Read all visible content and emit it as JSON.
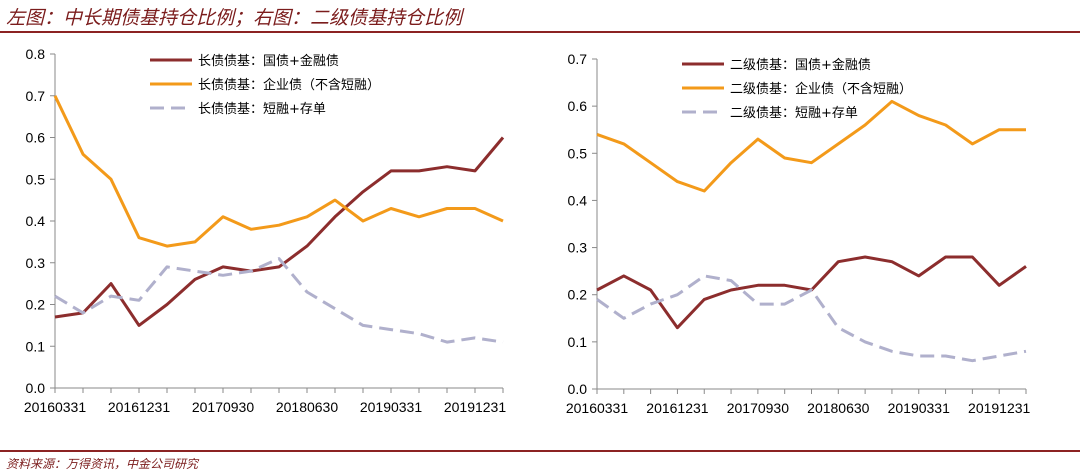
{
  "header": {
    "title": "左图：中长期债基持仓比例；右图：二级债基持仓比例"
  },
  "footer": {
    "source": "资料来源：万得资讯，中金公司研究"
  },
  "colors": {
    "rule": "#8c2323",
    "series1": "#8c2d2d",
    "series2": "#f39a1a",
    "series3": "#b0b0cc"
  },
  "chart_data": [
    {
      "type": "line",
      "title": "中长期债基持仓比例",
      "x": [
        "20160331",
        "20160630",
        "20160930",
        "20161231",
        "20170331",
        "20170630",
        "20170930",
        "20171231",
        "20180331",
        "20180630",
        "20180930",
        "20181231",
        "20190331",
        "20190630",
        "20190930",
        "20191231",
        "20200331"
      ],
      "xticks": [
        "20160331",
        "20161231",
        "20170930",
        "20180630",
        "20190331",
        "20191231"
      ],
      "ylim": [
        0,
        0.8
      ],
      "yticks": [
        "0.0",
        "0.1",
        "0.2",
        "0.3",
        "0.4",
        "0.5",
        "0.6",
        "0.7",
        "0.8"
      ],
      "legend_position": "top-center",
      "series": [
        {
          "name": "长债债基：国债+金融债",
          "style": "solid",
          "color": "#8c2d2d",
          "values": [
            0.17,
            0.18,
            0.25,
            0.15,
            0.2,
            0.26,
            0.29,
            0.28,
            0.29,
            0.34,
            0.41,
            0.47,
            0.52,
            0.52,
            0.53,
            0.52,
            0.6
          ]
        },
        {
          "name": "长债债基：企业债（不含短融）",
          "style": "solid",
          "color": "#f39a1a",
          "values": [
            0.7,
            0.56,
            0.5,
            0.36,
            0.34,
            0.35,
            0.41,
            0.38,
            0.39,
            0.41,
            0.45,
            0.4,
            0.43,
            0.41,
            0.43,
            0.43,
            0.4
          ]
        },
        {
          "name": "长债债基：短融+存单",
          "style": "dashed",
          "color": "#b0b0cc",
          "values": [
            0.22,
            0.18,
            0.22,
            0.21,
            0.29,
            0.28,
            0.27,
            0.28,
            0.31,
            0.23,
            0.19,
            0.15,
            0.14,
            0.13,
            0.11,
            0.12,
            0.11
          ]
        }
      ]
    },
    {
      "type": "line",
      "title": "二级债基持仓比例",
      "x": [
        "20160331",
        "20160630",
        "20160930",
        "20161231",
        "20170331",
        "20170630",
        "20170930",
        "20171231",
        "20180331",
        "20180630",
        "20180930",
        "20181231",
        "20190331",
        "20190630",
        "20190930",
        "20191231",
        "20200331"
      ],
      "xticks": [
        "20160331",
        "20161231",
        "20170930",
        "20180630",
        "20190331",
        "20191231"
      ],
      "ylim": [
        0,
        0.7
      ],
      "yticks": [
        "0.0",
        "0.1",
        "0.2",
        "0.3",
        "0.4",
        "0.5",
        "0.6",
        "0.7"
      ],
      "legend_position": "top-center",
      "series": [
        {
          "name": "二级债基：国债+金融债",
          "style": "solid",
          "color": "#8c2d2d",
          "values": [
            0.21,
            0.24,
            0.21,
            0.13,
            0.19,
            0.21,
            0.22,
            0.22,
            0.21,
            0.27,
            0.28,
            0.27,
            0.24,
            0.28,
            0.28,
            0.22,
            0.26
          ]
        },
        {
          "name": "二级债基：企业债（不含短融）",
          "style": "solid",
          "color": "#f39a1a",
          "values": [
            0.54,
            0.52,
            0.48,
            0.44,
            0.42,
            0.48,
            0.53,
            0.49,
            0.48,
            0.52,
            0.56,
            0.61,
            0.58,
            0.56,
            0.52,
            0.55,
            0.55
          ]
        },
        {
          "name": "二级债基：短融+存单",
          "style": "dashed",
          "color": "#b0b0cc",
          "values": [
            0.19,
            0.15,
            0.18,
            0.2,
            0.24,
            0.23,
            0.18,
            0.18,
            0.21,
            0.13,
            0.1,
            0.08,
            0.07,
            0.07,
            0.06,
            0.07,
            0.08
          ]
        }
      ]
    }
  ]
}
